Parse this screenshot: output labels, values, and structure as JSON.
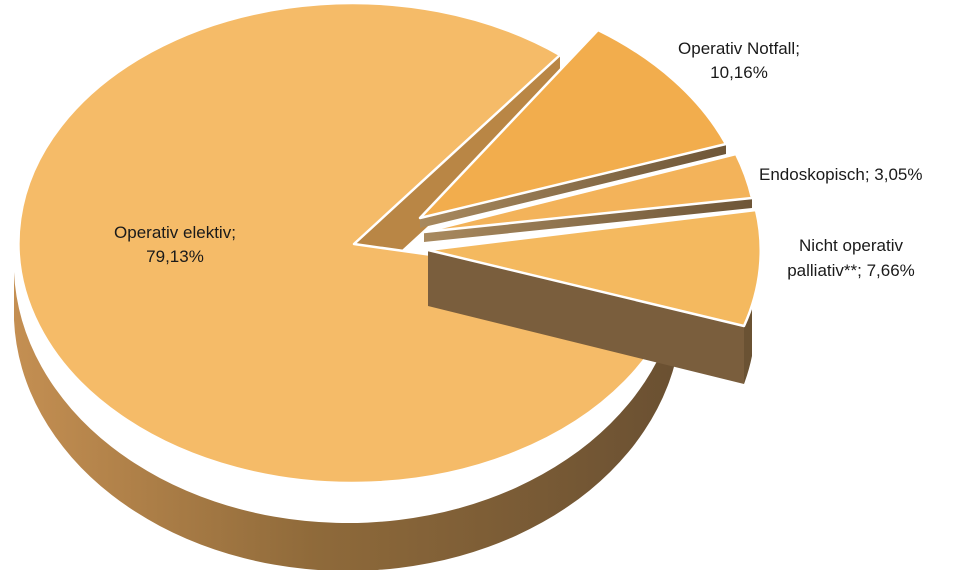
{
  "chart_data": {
    "type": "pie",
    "style": "3d-exploded",
    "title": "",
    "slices": [
      {
        "label": "Operativ  elektiv",
        "value": 79.13,
        "display": "79,13%",
        "color": "#F5BB68"
      },
      {
        "label": "Operativ  Notfall",
        "value": 10.16,
        "display": "10,16%",
        "color": "#F2AD4D"
      },
      {
        "label": "Endoskopisch",
        "value": 3.05,
        "display": "3,05%",
        "color": "#F3B35A"
      },
      {
        "label": "Nicht operativ palliativ**",
        "value": 7.66,
        "display": "7,66%",
        "color": "#F4B95F"
      }
    ]
  }
}
